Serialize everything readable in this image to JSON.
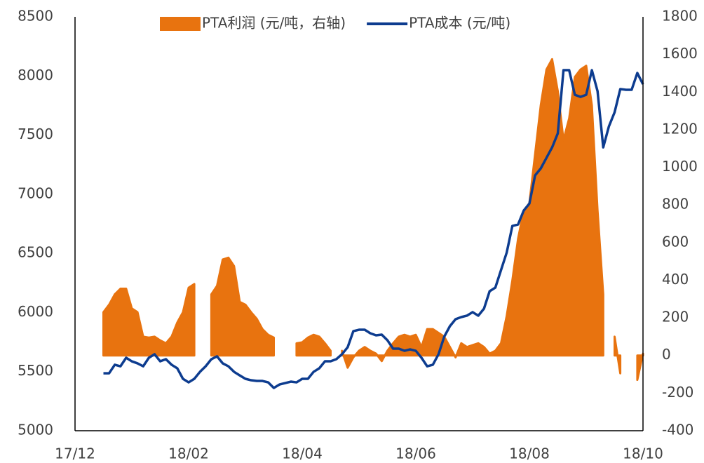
{
  "chart_data": {
    "type": "line",
    "categories": [
      "17/12",
      null,
      null,
      null,
      null,
      null,
      null,
      null,
      null,
      null,
      null,
      null,
      null,
      null,
      null,
      null,
      null,
      null,
      null,
      null,
      "18/02",
      null,
      null,
      null,
      null,
      null,
      null,
      null,
      null,
      null,
      null,
      null,
      null,
      null,
      null,
      null,
      null,
      null,
      null,
      null,
      "18/04",
      null,
      null,
      null,
      null,
      null,
      null,
      null,
      null,
      null,
      null,
      null,
      null,
      null,
      null,
      null,
      null,
      null,
      null,
      null,
      "18/06",
      null,
      null,
      null,
      null,
      null,
      null,
      null,
      null,
      null,
      null,
      null,
      null,
      null,
      null,
      null,
      null,
      null,
      null,
      null,
      "18/08",
      null,
      null,
      null,
      null,
      null,
      null,
      null,
      null,
      null,
      null,
      null,
      null,
      null,
      null,
      null,
      null,
      null,
      null,
      null,
      "18/10"
    ],
    "series": [
      {
        "name": "PTA利润 (元/吨，右轴)",
        "type": "area",
        "axis": "y2",
        "color": "#E8730F",
        "values": [
          null,
          null,
          null,
          null,
          null,
          230,
          270,
          325,
          355,
          355,
          250,
          230,
          100,
          95,
          100,
          80,
          65,
          100,
          175,
          230,
          360,
          380,
          null,
          null,
          325,
          370,
          510,
          520,
          475,
          285,
          270,
          230,
          195,
          140,
          110,
          95,
          null,
          null,
          null,
          65,
          70,
          95,
          110,
          100,
          65,
          25,
          null,
          25,
          -65,
          -10,
          25,
          45,
          25,
          10,
          -30,
          25,
          65,
          100,
          110,
          100,
          110,
          45,
          140,
          140,
          120,
          100,
          45,
          -10,
          65,
          45,
          55,
          65,
          45,
          10,
          25,
          65,
          210,
          400,
          620,
          770,
          810,
          1070,
          1330,
          1520,
          1575,
          1405,
          1145,
          1260,
          1480,
          1520,
          1540,
          1330,
          770,
          325,
          null,
          100,
          -95,
          null,
          null,
          -130,
          10
        ]
      },
      {
        "name": "PTA成本 (元/吨)",
        "type": "line",
        "color": "#0D3C8F",
        "values": [
          null,
          null,
          null,
          null,
          null,
          5486,
          5486,
          5558,
          5545,
          5617,
          5587,
          5570,
          5545,
          5617,
          5647,
          5587,
          5605,
          5558,
          5528,
          5439,
          5409,
          5439,
          5498,
          5545,
          5605,
          5629,
          5570,
          5545,
          5498,
          5468,
          5439,
          5427,
          5421,
          5421,
          5409,
          5362,
          5391,
          5403,
          5415,
          5409,
          5439,
          5439,
          5498,
          5528,
          5587,
          5587,
          5605,
          5647,
          5706,
          5842,
          5854,
          5854,
          5824,
          5807,
          5813,
          5765,
          5694,
          5694,
          5676,
          5688,
          5676,
          5617,
          5545,
          5558,
          5647,
          5795,
          5884,
          5943,
          5961,
          5973,
          6003,
          5973,
          6032,
          6180,
          6210,
          6358,
          6506,
          6732,
          6744,
          6862,
          6921,
          7159,
          7218,
          7307,
          7396,
          7515,
          8049,
          8049,
          7841,
          7823,
          7841,
          8049,
          7871,
          7396,
          7574,
          7693,
          7889,
          7883,
          7883,
          8025,
          7930
        ]
      }
    ],
    "ylim": [
      5000,
      8500
    ],
    "yticks": [
      5000,
      5500,
      6000,
      6500,
      7000,
      7500,
      8000,
      8500
    ],
    "y2lim": [
      -400,
      1800
    ],
    "y2ticks": [
      -400,
      -200,
      0,
      200,
      400,
      600,
      800,
      1000,
      1200,
      1400,
      1600,
      1800
    ],
    "legend": "top"
  }
}
